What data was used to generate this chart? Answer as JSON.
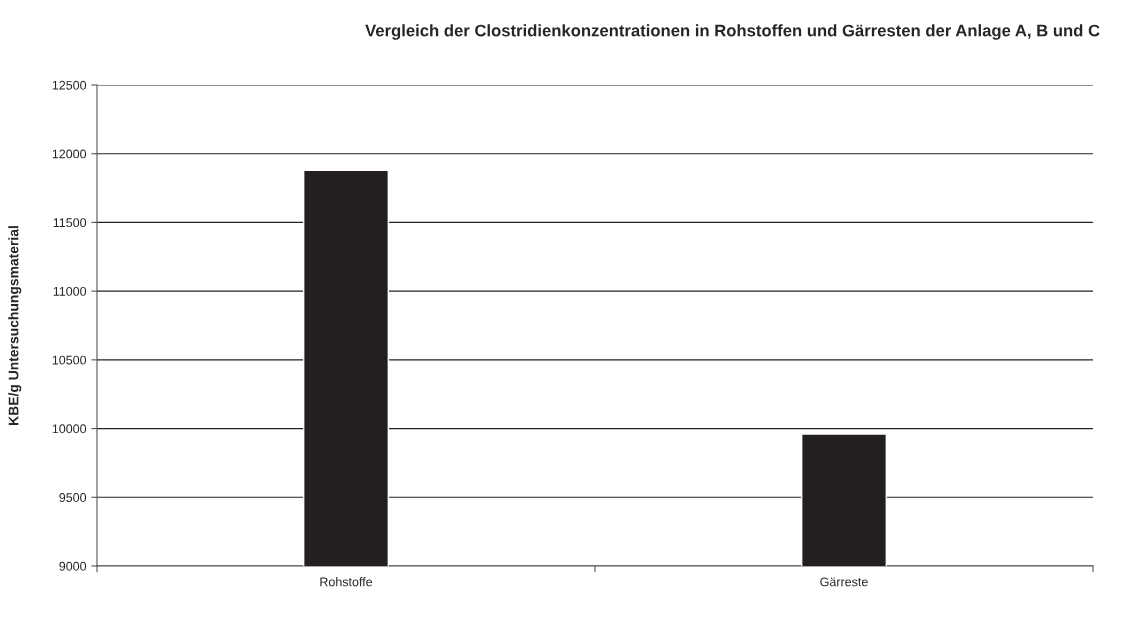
{
  "chart_data": {
    "type": "bar",
    "title": "Vergleich der Clostridienkonzentrationen in Rohstoffen und Gärresten der Anlage A, B und C",
    "ylabel": "KBE/g Untersuchungsmaterial",
    "categories": [
      "Rohstoffe",
      "Gärreste"
    ],
    "values": [
      11880,
      9960
    ],
    "color": "#231f20",
    "ylim": [
      9000,
      12500
    ],
    "yticks": [
      9000,
      9500,
      10000,
      10500,
      11000,
      11500,
      12000,
      12500
    ],
    "grid": "y"
  }
}
